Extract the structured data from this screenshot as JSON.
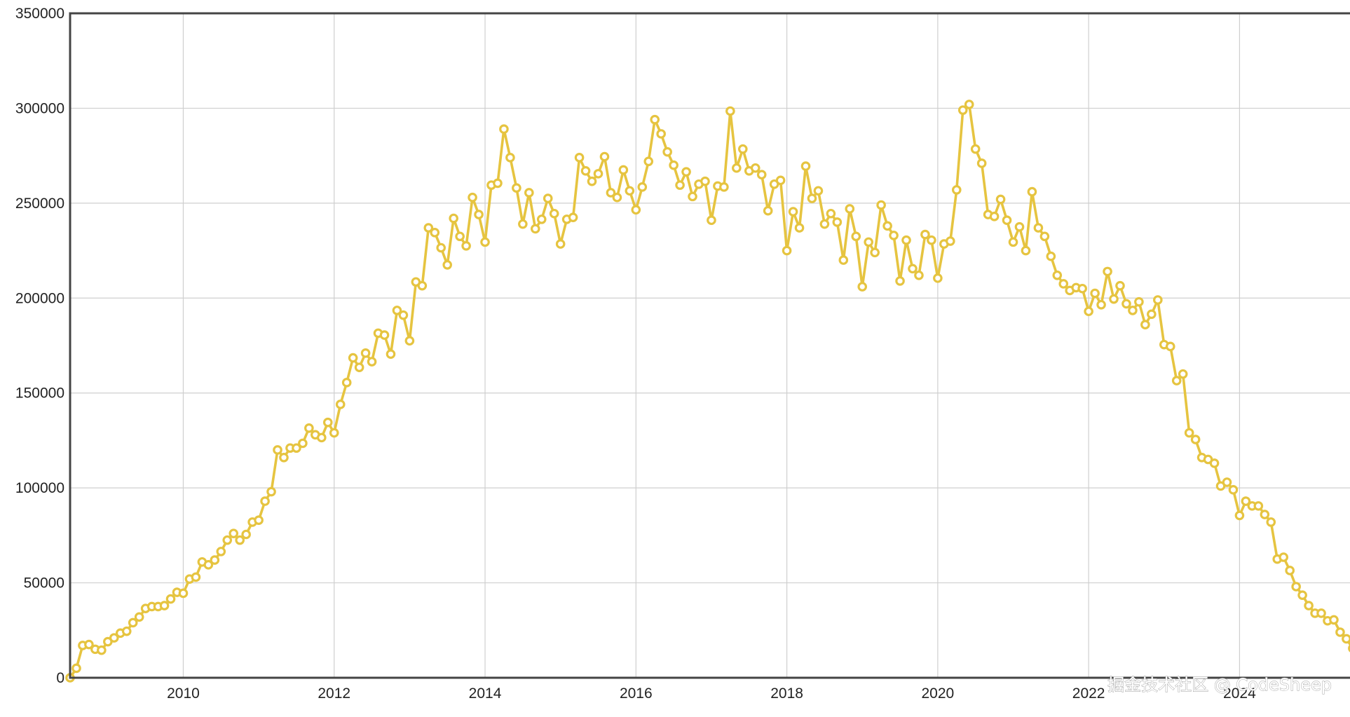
{
  "chart_data": {
    "type": "line",
    "title": "",
    "xlabel": "",
    "ylabel": "",
    "x_start": "2008-07",
    "x_step": "month",
    "xlim": [
      "2008-07",
      "2025-08"
    ],
    "ylim": [
      0,
      350000
    ],
    "y_ticks": [
      "0",
      "50000",
      "100000",
      "150000",
      "200000",
      "250000",
      "300000",
      "350000"
    ],
    "x_ticks": [
      "2010",
      "2012",
      "2014",
      "2016",
      "2018",
      "2020",
      "2022",
      "2024"
    ],
    "grid": true,
    "legend": "none",
    "series": [
      {
        "color": "#e6c440",
        "values": [
          0,
          5000,
          17000,
          17500,
          15000,
          14500,
          19000,
          21000,
          23500,
          24500,
          29000,
          32000,
          36500,
          37500,
          37500,
          38000,
          41500,
          45000,
          44500,
          52000,
          53000,
          61000,
          59500,
          62000,
          66500,
          72500,
          76000,
          72500,
          75500,
          82000,
          83000,
          93000,
          98000,
          120000,
          116000,
          121000,
          121000,
          123500,
          131500,
          128000,
          126500,
          134500,
          129000,
          144000,
          155500,
          168500,
          163500,
          171000,
          166500,
          181500,
          180500,
          170500,
          193500,
          191000,
          177500,
          208500,
          206500,
          237000,
          234500,
          226500,
          217500,
          242000,
          232500,
          227500,
          253000,
          244000,
          229500,
          259500,
          260500,
          289000,
          274000,
          258000,
          239000,
          255500,
          236500,
          241500,
          252500,
          244500,
          228500,
          241500,
          242500,
          274000,
          267000,
          261500,
          265500,
          274500,
          255500,
          253000,
          267500,
          256500,
          246500,
          258500,
          272000,
          294000,
          286500,
          277000,
          270000,
          259500,
          266500,
          253500,
          260000,
          261500,
          241000,
          259000,
          258500,
          298500,
          268500,
          278500,
          267000,
          268500,
          265000,
          246000,
          260000,
          262000,
          225000,
          245500,
          237000,
          269500,
          252500,
          256500,
          239000,
          244500,
          240000,
          220000,
          247000,
          232500,
          206000,
          229500,
          224000,
          249000,
          238000,
          233000,
          209000,
          230500,
          215500,
          212000,
          233500,
          230500,
          210500,
          228500,
          230000,
          257000,
          299000,
          302000,
          278500,
          271000,
          244000,
          243000,
          252000,
          241000,
          229500,
          237500,
          225000,
          256000,
          237000,
          232500,
          222000,
          212000,
          207500,
          204000,
          205500,
          205000,
          193000,
          202500,
          196500,
          214000,
          199500,
          206500,
          197000,
          193500,
          198000,
          186000,
          191500,
          199000,
          175500,
          174500,
          156500,
          160000,
          129000,
          125500,
          116000,
          115000,
          113000,
          101000,
          103000,
          99000,
          85500,
          93000,
          90500,
          90500,
          86000,
          82000,
          62500,
          63500,
          56500,
          48000,
          43500,
          38000,
          34000,
          34000,
          30000,
          30500,
          24000,
          20500,
          15500
        ]
      }
    ]
  },
  "watermark": {
    "text": "掘金技术社区 @ CodeSheep"
  }
}
